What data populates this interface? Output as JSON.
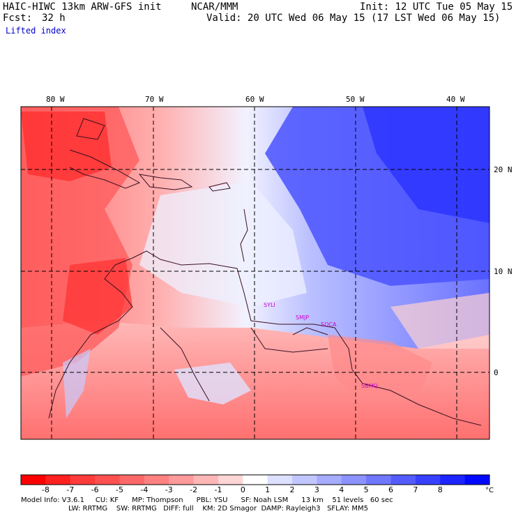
{
  "header": {
    "model": "HAIC-HIWC 13km ARW-GFS init",
    "org": "NCAR/MMM",
    "init": "Init: 12 UTC Tue 05 May 15",
    "fcst_label": "Fcst:",
    "fcst_value": "32 h",
    "valid": "Valid: 20 UTC Wed 06 May 15 (17 LST Wed 06 May 15)",
    "field": "Lifted index"
  },
  "map": {
    "lon_labels": [
      "80 W",
      "70 W",
      "60 W",
      "50 W",
      "40 W"
    ],
    "lat_labels": [
      "20 N",
      "10 N",
      "0"
    ],
    "stations": [
      "SYLI",
      "SMJP",
      "SOCA",
      "SBMQ"
    ]
  },
  "colorbar": {
    "ticks": [
      "-8",
      "-7",
      "-6",
      "-5",
      "-4",
      "-3",
      "-2",
      "-1",
      "0",
      "1",
      "2",
      "3",
      "4",
      "5",
      "6",
      "7",
      "8"
    ],
    "unit": "°C",
    "colors": [
      "#ff0000",
      "#ff2020",
      "#ff3b3b",
      "#ff5050",
      "#ff6868",
      "#ff8080",
      "#ff9a9a",
      "#ffb6b6",
      "#ffd6d6",
      "#ffffff",
      "#dde0ff",
      "#c2c6ff",
      "#a6acff",
      "#8c93ff",
      "#7077ff",
      "#545cff",
      "#3840ff",
      "#1c24ff",
      "#0008ff"
    ]
  },
  "footer": {
    "line1": "Model Info: V3.6.1     CU: KF      MP: Thompson      PBL: YSU      SF: Noah LSM      13 km    51 levels   60 sec",
    "line2": "LW: RRTMG    SW: RRTMG   DIFF: full    KM: 2D Smagor  DAMP: Rayleigh3   SFLAY: MM5"
  }
}
